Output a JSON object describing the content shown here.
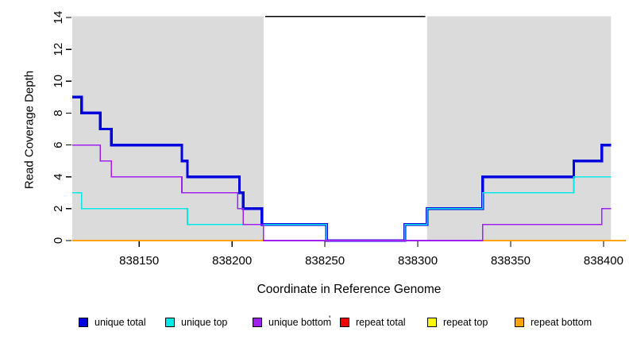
{
  "chart": {
    "ylabel": "Read Coverage Depth",
    "xlabel": "Coordinate in Reference Genome",
    "stray_mark": "'"
  },
  "chart_data": {
    "type": "line",
    "subtype": "step-after-coverage",
    "title": "",
    "xlabel": "Coordinate in Reference Genome",
    "ylabel": "Read Coverage Depth",
    "xlim": [
      838114,
      838412
    ],
    "ylim": [
      0,
      14
    ],
    "grid": false,
    "background_color": "#ffffff",
    "shaded_region_color": "#dbdbdb",
    "shaded_regions": [
      {
        "x1": 838114,
        "x2": 838217
      },
      {
        "x1": 838305,
        "x2": 838404
      }
    ],
    "gap_top_line": {
      "x1": 838218,
      "x2": 838304,
      "y": 14,
      "color": "#000000"
    },
    "x_ticks": [
      838150,
      838200,
      838250,
      838300,
      838350,
      838400
    ],
    "x_tick_labels": [
      "838150",
      "838200",
      "838250",
      "838300",
      "838350",
      "838400"
    ],
    "y_ticks": [
      0,
      2,
      4,
      6,
      8,
      10,
      12,
      14
    ],
    "y_tick_labels": [
      "0",
      "2",
      "4",
      "6",
      "8",
      "10",
      "12",
      "14"
    ],
    "series": [
      {
        "name": "repeat total",
        "color": "#ee0000",
        "width": 1.6,
        "points": [
          [
            838114,
            0
          ],
          [
            838412,
            0
          ]
        ]
      },
      {
        "name": "repeat top",
        "color": "#ffff00",
        "width": 1.6,
        "points": [
          [
            838114,
            0
          ],
          [
            838412,
            0
          ]
        ]
      },
      {
        "name": "repeat bottom",
        "color": "#ffa500",
        "width": 1.6,
        "points": [
          [
            838114,
            0
          ],
          [
            838412,
            0
          ]
        ]
      },
      {
        "name": "unique total",
        "color": "#0000dd",
        "width": 3.4,
        "points": [
          [
            838114,
            9
          ],
          [
            838119,
            8
          ],
          [
            838129,
            7
          ],
          [
            838135,
            6
          ],
          [
            838173,
            5
          ],
          [
            838176,
            4
          ],
          [
            838204,
            3
          ],
          [
            838206,
            2
          ],
          [
            838216,
            1
          ],
          [
            838251,
            0
          ],
          [
            838293,
            1
          ],
          [
            838305,
            2
          ],
          [
            838335,
            4
          ],
          [
            838384,
            5
          ],
          [
            838399,
            6
          ],
          [
            838404,
            6
          ]
        ]
      },
      {
        "name": "unique top",
        "color": "#00e8e8",
        "width": 1.6,
        "points": [
          [
            838114,
            3
          ],
          [
            838119,
            2
          ],
          [
            838176,
            1
          ],
          [
            838251,
            0
          ],
          [
            838293,
            1
          ],
          [
            838305,
            2
          ],
          [
            838335,
            3
          ],
          [
            838384,
            4
          ],
          [
            838404,
            4
          ]
        ]
      },
      {
        "name": "unique bottom",
        "color": "#a020f0",
        "width": 1.6,
        "points": [
          [
            838114,
            6
          ],
          [
            838129,
            5
          ],
          [
            838135,
            4
          ],
          [
            838173,
            3
          ],
          [
            838203,
            2
          ],
          [
            838206,
            1
          ],
          [
            838217,
            0
          ],
          [
            838335,
            1
          ],
          [
            838399,
            2
          ],
          [
            838404,
            2
          ]
        ]
      }
    ],
    "legend_position": "bottom",
    "legend": [
      {
        "label": "unique total",
        "color": "#0000dd"
      },
      {
        "label": "unique top",
        "color": "#00e8e8"
      },
      {
        "label": "unique bottom",
        "color": "#a020f0"
      },
      {
        "label": "repeat total",
        "color": "#ee0000"
      },
      {
        "label": "repeat top",
        "color": "#ffff00"
      },
      {
        "label": "repeat bottom",
        "color": "#ffa500"
      }
    ]
  }
}
